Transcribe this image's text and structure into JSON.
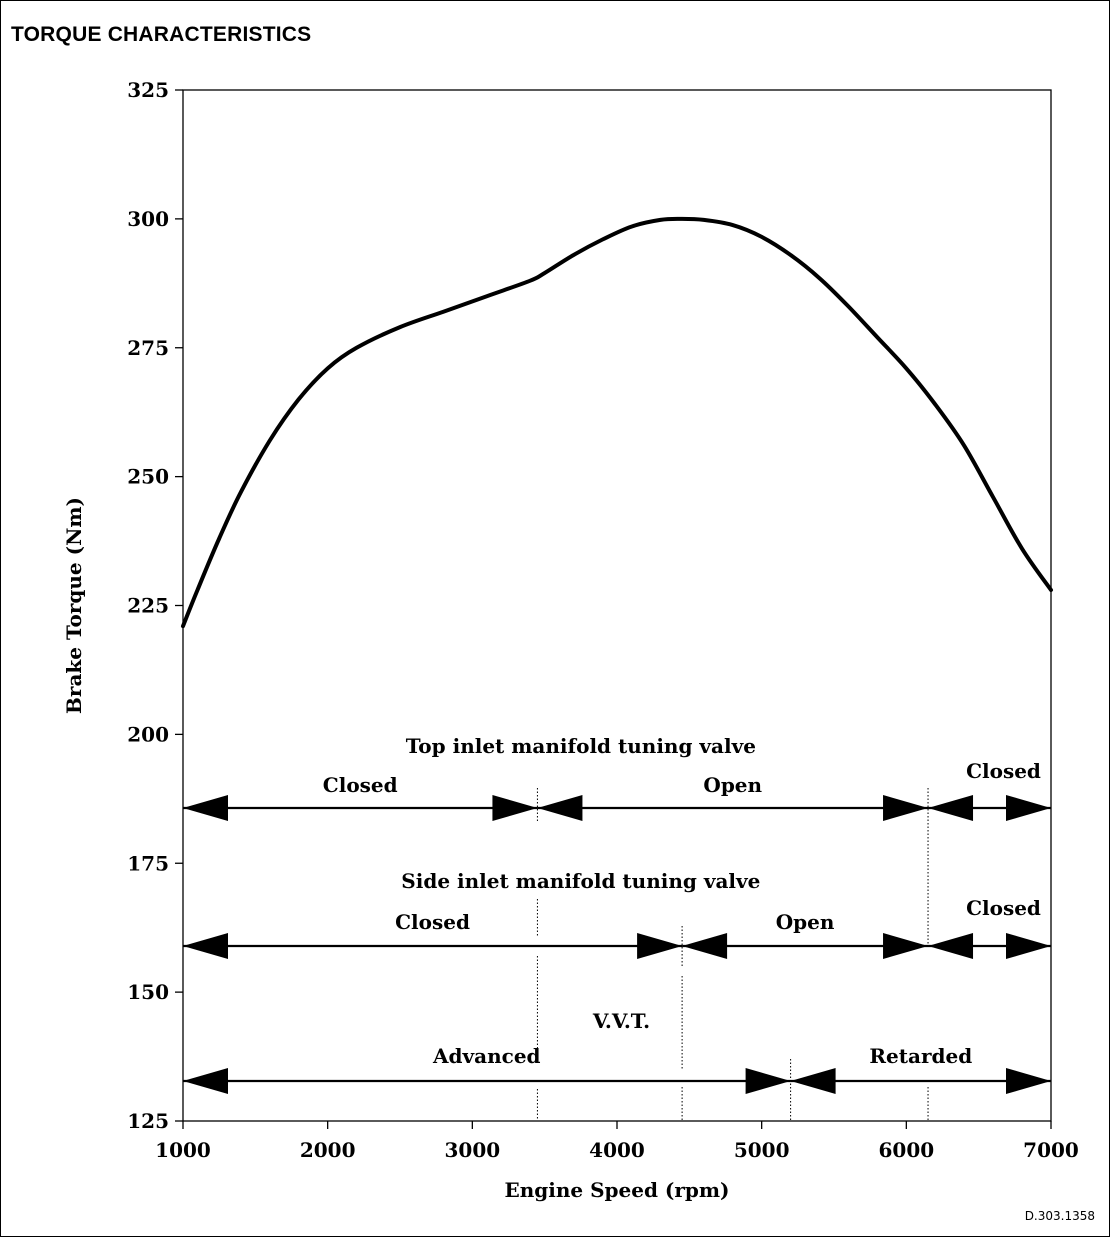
{
  "chart_data": {
    "type": "line",
    "title": "TORQUE CHARACTERISTICS",
    "xlabel": "Engine Speed (rpm)",
    "ylabel": "Brake Torque (Nm)",
    "xlim": [
      1000,
      7000
    ],
    "ylim": [
      125,
      325
    ],
    "xticks": [
      1000,
      2000,
      3000,
      4000,
      5000,
      6000,
      7000
    ],
    "yticks": [
      125,
      150,
      175,
      200,
      225,
      250,
      275,
      300,
      325
    ],
    "grid": false,
    "series": [
      {
        "x": [
          1000,
          1100,
          1250,
          1400,
          1600,
          1800,
          2000,
          2200,
          2500,
          2800,
          3100,
          3400,
          3500,
          3700,
          3900,
          4100,
          4300,
          4450,
          4600,
          4800,
          5000,
          5200,
          5400,
          5600,
          5800,
          6000,
          6200,
          6400,
          6600,
          6800,
          7000
        ],
        "y": [
          221,
          228,
          238,
          247,
          257,
          265,
          271,
          275,
          279,
          282,
          285,
          288,
          289.5,
          293,
          296,
          298.5,
          299.8,
          300,
          299.8,
          298.8,
          296.5,
          293,
          288.5,
          283,
          277,
          271,
          264,
          256,
          246,
          236,
          228
        ]
      }
    ],
    "annotations": [
      {
        "heading": "Top inlet manifold tuning valve",
        "segments": [
          {
            "label": "Closed",
            "from": 1000,
            "to": 3450
          },
          {
            "label": "Open",
            "from": 3450,
            "to": 6150
          },
          {
            "label": "Closed",
            "from": 6150,
            "to": 7000
          }
        ]
      },
      {
        "heading": "Side inlet manifold tuning valve",
        "segments": [
          {
            "label": "Closed",
            "from": 1000,
            "to": 4450
          },
          {
            "label": "Open",
            "from": 4450,
            "to": 6150
          },
          {
            "label": "Closed",
            "from": 6150,
            "to": 7000
          }
        ]
      },
      {
        "heading": "V.V.T.",
        "segments": [
          {
            "label": "Advanced",
            "from": 1000,
            "to": 5200
          },
          {
            "label": "Retarded",
            "from": 5200,
            "to": 7000
          }
        ]
      }
    ],
    "dividers": [
      3450,
      4450,
      5200,
      6150
    ],
    "reference": "D.303.1358"
  }
}
